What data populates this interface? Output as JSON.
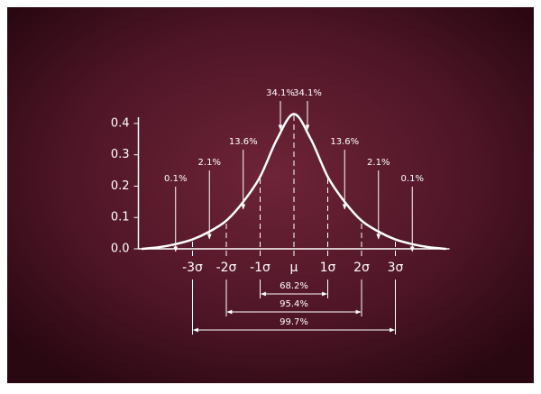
{
  "chart_data": {
    "type": "normal-curve",
    "x": [
      -4.5,
      -4,
      -3.5,
      -3,
      -2.5,
      -2,
      -1.5,
      -1,
      -0.5,
      0,
      0.5,
      1,
      1.5,
      2,
      2.5,
      3,
      3.5,
      4,
      4.5
    ],
    "values": [
      0,
      0.005,
      0.015,
      0.03,
      0.055,
      0.09,
      0.15,
      0.23,
      0.35,
      0.43,
      0.35,
      0.23,
      0.15,
      0.09,
      0.055,
      0.03,
      0.015,
      0.005,
      0
    ],
    "color": "#ffffff",
    "xlim": [
      -4.6,
      4.6
    ],
    "ylim": [
      0,
      0.42
    ],
    "xticks": [
      {
        "value": -3,
        "label": "-3σ"
      },
      {
        "value": -2,
        "label": "-2σ"
      },
      {
        "value": -1,
        "label": "-1σ"
      },
      {
        "value": 0,
        "label": "μ"
      },
      {
        "value": 1,
        "label": "1σ"
      },
      {
        "value": 2,
        "label": "2σ"
      },
      {
        "value": 3,
        "label": "3σ"
      }
    ],
    "yticks": [
      {
        "value": 0,
        "label": "0.0"
      },
      0.1,
      0.2,
      0.3,
      0.4
    ],
    "region_labels": [
      "0.1%",
      "2.1%",
      "13.6%",
      "34.1%",
      "34.1%",
      "13.6%",
      "2.1%",
      "0.1%"
    ],
    "range_labels": [
      "68.2%",
      "95.4%",
      "99.7%"
    ]
  }
}
